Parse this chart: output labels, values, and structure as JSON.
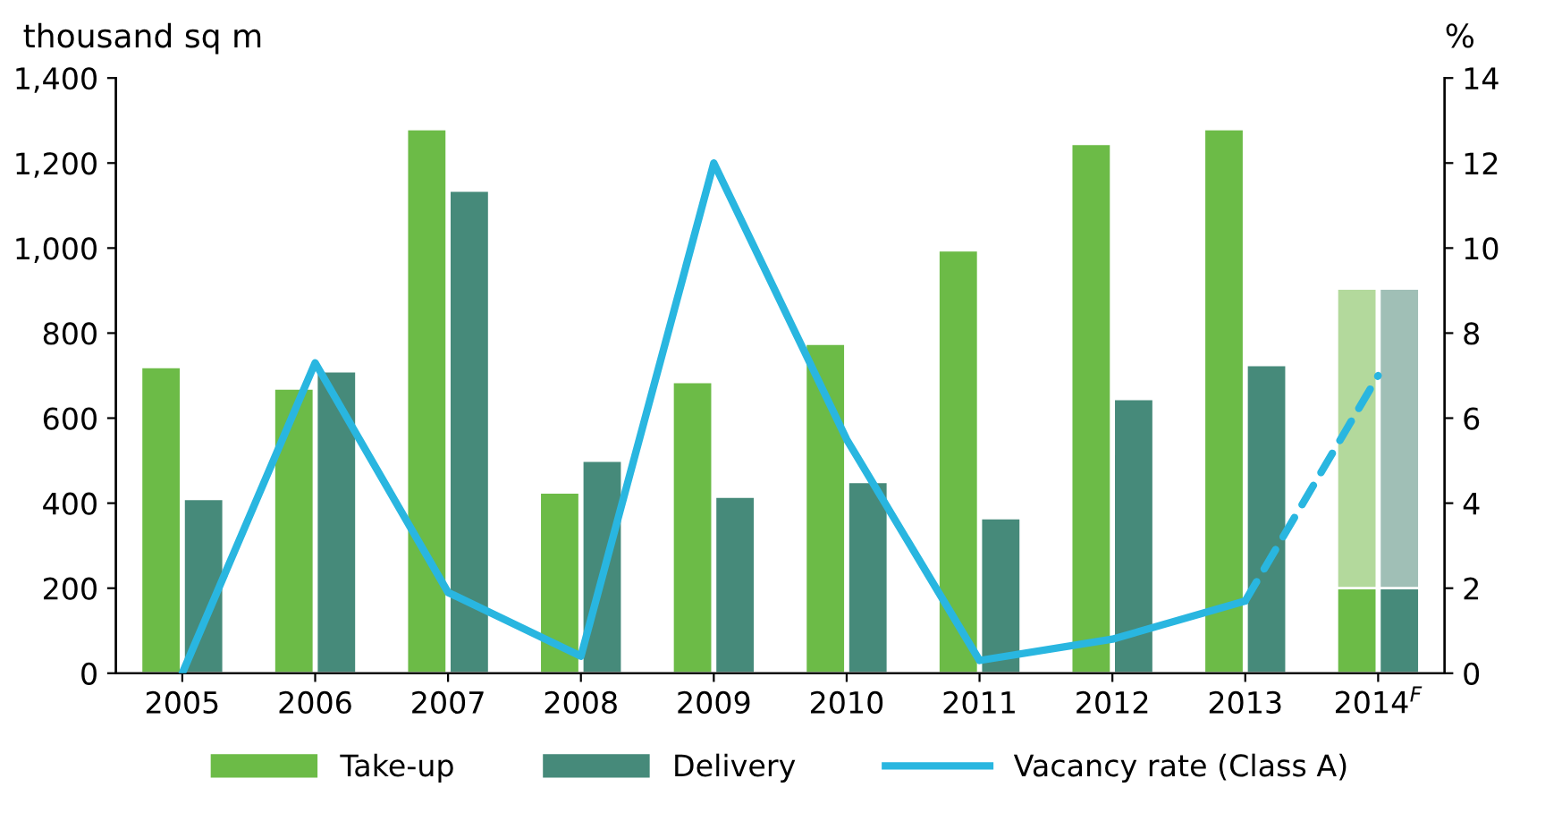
{
  "chart_data": {
    "type": "bar",
    "ylabel": "thousand sq m",
    "y2label": "%",
    "categories": [
      "2005",
      "2006",
      "2007",
      "2008",
      "2009",
      "2010",
      "2011",
      "2012",
      "2013",
      "2014$^{F}$"
    ],
    "series": [
      {
        "name": "Take-up",
        "color": "#6cbb47",
        "values": [
          720,
          670,
          1280,
          425,
          685,
          775,
          995,
          1245,
          1280,
          200
        ]
      },
      {
        "color": "#b3d99c",
        "values": [
          null,
          null,
          null,
          null,
          null,
          null,
          null,
          null,
          null,
          705
        ],
        "base": [
          null,
          null,
          null,
          null,
          null,
          null,
          null,
          null,
          null,
          200
        ]
      },
      {
        "name": "Delivery",
        "color": "#468a7a",
        "values": [
          410,
          710,
          1135,
          500,
          415,
          450,
          365,
          645,
          725,
          200
        ]
      },
      {
        "color": "#a0bfb6",
        "values": [
          null,
          null,
          null,
          null,
          null,
          null,
          null,
          null,
          null,
          705
        ],
        "base": [
          null,
          null,
          null,
          null,
          null,
          null,
          null,
          null,
          null,
          200
        ]
      },
      {
        "name": "Vacancy rate (Class A)",
        "type": "line",
        "axis": "y2",
        "color": "#29b6e0",
        "line_style": "solid",
        "values": [
          0,
          7.3,
          1.9,
          0.4,
          12.0,
          5.5,
          0.3,
          0.8,
          1.7,
          null
        ]
      },
      {
        "type": "line",
        "axis": "y2",
        "color": "#29b6e0",
        "line_style": "dashed",
        "values": [
          null,
          null,
          null,
          null,
          null,
          null,
          null,
          null,
          1.7,
          7.0
        ]
      }
    ],
    "ylim": [
      0,
      1400
    ],
    "yticks": [
      0,
      200,
      400,
      600,
      800,
      {
        "value": 1000,
        "label": "1,000"
      },
      {
        "value": 1200,
        "label": "1,200"
      },
      {
        "value": 1400,
        "label": "1,400"
      }
    ],
    "y2lim": [
      0,
      14
    ],
    "y2ticks": [
      0,
      2,
      4,
      6,
      8,
      10,
      12,
      14
    ],
    "grid": false,
    "legend": "bottom"
  }
}
